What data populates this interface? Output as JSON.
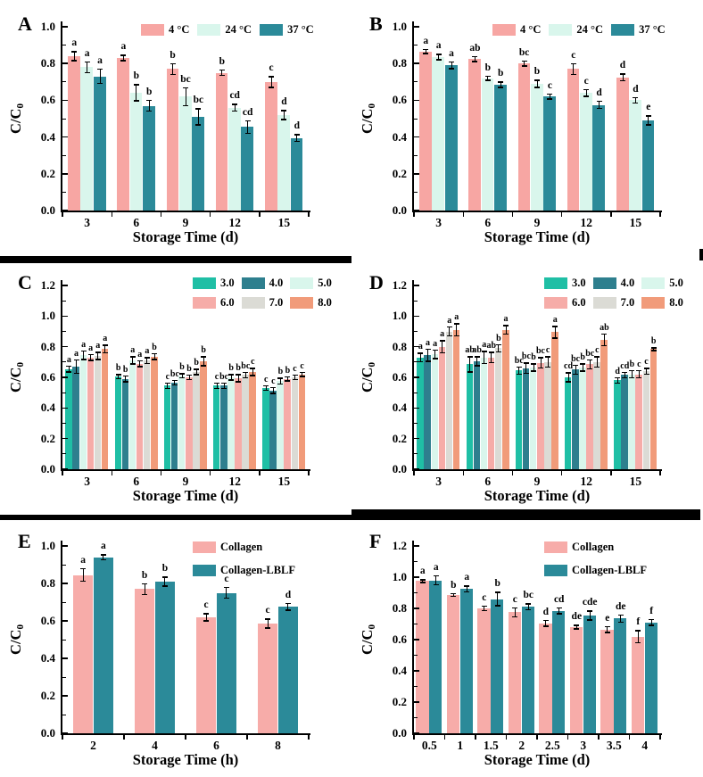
{
  "figure_title": "Six-panel bar chart figure (A-F), C/C0 stability versus storage time",
  "colors": {
    "pink": "#F7A6A3",
    "mint": "#D9F6EC",
    "teal": "#2B8A99",
    "teal_dark": "#2E7F8E",
    "turquoise": "#1FBFA5",
    "salmon": "#F6ACA8",
    "gray": "#DBDBD5",
    "coral": "#F19B7A",
    "axis": "#000000"
  },
  "chart_data": [
    {
      "id": "A",
      "panel_label": "A",
      "type": "bar",
      "xlabel": "Storage Time (d)",
      "ylabel": "C/C",
      "ylabel_sub": "0",
      "ymax": 1.0,
      "yticks": [
        "0.0",
        "0.2",
        "0.4",
        "0.6",
        "0.8",
        "1.0"
      ],
      "categories": [
        "3",
        "6",
        "9",
        "12",
        "15"
      ],
      "legend_position": "top-right-row",
      "grid": "off",
      "series": [
        {
          "name": "4 °C",
          "color": "#F7A6A3",
          "values": [
            0.84,
            0.83,
            0.77,
            0.75,
            0.7
          ],
          "errors": [
            0.025,
            0.015,
            0.03,
            0.015,
            0.03
          ],
          "letters": [
            "a",
            "a",
            "b",
            "b",
            "c"
          ]
        },
        {
          "name": "24 °C",
          "color": "#D9F6EC",
          "values": [
            0.78,
            0.64,
            0.62,
            0.56,
            0.52
          ],
          "errors": [
            0.03,
            0.045,
            0.05,
            0.02,
            0.025
          ],
          "letters": [
            "a",
            "b",
            "bc",
            "cd",
            "d"
          ]
        },
        {
          "name": "37 °C",
          "color": "#2B8A99",
          "values": [
            0.73,
            0.57,
            0.51,
            0.455,
            0.395
          ],
          "errors": [
            0.04,
            0.03,
            0.045,
            0.035,
            0.02
          ],
          "letters": [
            "a",
            "b",
            "bc",
            "cd",
            "d"
          ]
        }
      ]
    },
    {
      "id": "B",
      "panel_label": "B",
      "type": "bar",
      "xlabel": "Storage Time (d)",
      "ylabel": "C/C",
      "ylabel_sub": "0",
      "ymax": 1.0,
      "yticks": [
        "0.0",
        "0.2",
        "0.4",
        "0.6",
        "0.8",
        "1.0"
      ],
      "categories": [
        "3",
        "6",
        "9",
        "12",
        "15"
      ],
      "legend_position": "top-right-row",
      "grid": "off",
      "series": [
        {
          "name": "4 °C",
          "color": "#F7A6A3",
          "values": [
            0.865,
            0.825,
            0.8,
            0.77,
            0.725
          ],
          "errors": [
            0.012,
            0.015,
            0.015,
            0.03,
            0.02
          ],
          "letters": [
            "a",
            "ab",
            "bc",
            "c",
            "d"
          ]
        },
        {
          "name": "24 °C",
          "color": "#D9F6EC",
          "values": [
            0.835,
            0.72,
            0.69,
            0.64,
            0.6
          ],
          "errors": [
            0.015,
            0.012,
            0.02,
            0.02,
            0.015
          ],
          "letters": [
            "a",
            "b",
            "b",
            "c",
            "d"
          ]
        },
        {
          "name": "37 °C",
          "color": "#2B8A99",
          "values": [
            0.79,
            0.685,
            0.62,
            0.575,
            0.49
          ],
          "errors": [
            0.02,
            0.015,
            0.015,
            0.02,
            0.025
          ],
          "letters": [
            "a",
            "b",
            "c",
            "d",
            "e"
          ]
        }
      ]
    },
    {
      "id": "C",
      "panel_label": "C",
      "type": "bar",
      "xlabel": "Storage Time (d)",
      "ylabel": "C/C",
      "ylabel_sub": "0",
      "ymax": 1.2,
      "yticks": [
        "0.0",
        "0.2",
        "0.4",
        "0.6",
        "0.8",
        "1.0",
        "1.2"
      ],
      "categories": [
        "3",
        "6",
        "9",
        "12",
        "15"
      ],
      "legend_position": "top-right-grid",
      "grid": "off",
      "series": [
        {
          "name": "3.0",
          "color": "#1FBFA5",
          "values": [
            0.655,
            0.605,
            0.545,
            0.545,
            0.53
          ],
          "errors": [
            0.02,
            0.015,
            0.02,
            0.02,
            0.015
          ],
          "letters": [
            "a",
            "b",
            "c",
            "c",
            "c"
          ]
        },
        {
          "name": "4.0",
          "color": "#2E7F8E",
          "values": [
            0.67,
            0.59,
            0.565,
            0.545,
            0.515
          ],
          "errors": [
            0.045,
            0.02,
            0.015,
            0.02,
            0.02
          ],
          "letters": [
            "a",
            "b",
            "bc",
            "bc",
            "c"
          ]
        },
        {
          "name": "5.0",
          "color": "#D9F6EC",
          "values": [
            0.745,
            0.71,
            0.61,
            0.6,
            0.575
          ],
          "errors": [
            0.03,
            0.025,
            0.015,
            0.02,
            0.02
          ],
          "letters": [
            "a",
            "a",
            "b",
            "b",
            "b"
          ]
        },
        {
          "name": "6.0",
          "color": "#F6ACA8",
          "values": [
            0.73,
            0.69,
            0.6,
            0.595,
            0.59
          ],
          "errors": [
            0.02,
            0.02,
            0.015,
            0.025,
            0.015
          ],
          "letters": [
            "a",
            "a",
            "b",
            "b",
            "b"
          ]
        },
        {
          "name": "7.0",
          "color": "#DBDBD5",
          "values": [
            0.74,
            0.71,
            0.635,
            0.615,
            0.6
          ],
          "errors": [
            0.025,
            0.02,
            0.02,
            0.02,
            0.015
          ],
          "letters": [
            "a",
            "a",
            "b",
            "bc",
            "c"
          ]
        },
        {
          "name": "8.0",
          "color": "#F19B7A",
          "values": [
            0.785,
            0.735,
            0.705,
            0.635,
            0.62
          ],
          "errors": [
            0.025,
            0.02,
            0.03,
            0.025,
            0.015
          ],
          "letters": [
            "a",
            "b",
            "b",
            "c",
            "c"
          ]
        }
      ]
    },
    {
      "id": "D",
      "panel_label": "D",
      "type": "bar",
      "xlabel": "Storage Time (d)",
      "ylabel": "C/C",
      "ylabel_sub": "0",
      "ymax": 1.2,
      "yticks": [
        "0.0",
        "0.2",
        "0.4",
        "0.6",
        "0.8",
        "1.0",
        "1.2"
      ],
      "categories": [
        "3",
        "6",
        "9",
        "12",
        "15"
      ],
      "legend_position": "top-right-grid",
      "grid": "off",
      "series": [
        {
          "name": "3.0",
          "color": "#1FBFA5",
          "values": [
            0.73,
            0.685,
            0.645,
            0.6,
            0.58
          ],
          "errors": [
            0.03,
            0.05,
            0.025,
            0.03,
            0.02
          ],
          "letters": [
            "a",
            "ab",
            "bc",
            "cd",
            "d"
          ]
        },
        {
          "name": "4.0",
          "color": "#2E7F8E",
          "values": [
            0.745,
            0.705,
            0.66,
            0.65,
            0.615
          ],
          "errors": [
            0.04,
            0.03,
            0.035,
            0.03,
            0.02
          ],
          "letters": [
            "a",
            "ab",
            "bc",
            "bc",
            "cd"
          ]
        },
        {
          "name": "5.0",
          "color": "#D9F6EC",
          "values": [
            0.75,
            0.73,
            0.665,
            0.665,
            0.62
          ],
          "errors": [
            0.03,
            0.04,
            0.025,
            0.025,
            0.025
          ],
          "letters": [
            "a",
            "a",
            "b",
            "b",
            "b"
          ]
        },
        {
          "name": "6.0",
          "color": "#F6ACA8",
          "values": [
            0.8,
            0.73,
            0.695,
            0.685,
            0.62
          ],
          "errors": [
            0.04,
            0.035,
            0.035,
            0.03,
            0.025
          ],
          "letters": [
            "a",
            "ab",
            "bc",
            "bc",
            "c"
          ]
        },
        {
          "name": "7.0",
          "color": "#DBDBD5",
          "values": [
            0.9,
            0.79,
            0.7,
            0.7,
            0.64
          ],
          "errors": [
            0.03,
            0.025,
            0.035,
            0.035,
            0.02
          ],
          "letters": [
            "a",
            "b",
            "c",
            "c",
            "c"
          ]
        },
        {
          "name": "8.0",
          "color": "#F19B7A",
          "values": [
            0.91,
            0.91,
            0.895,
            0.845,
            0.785
          ],
          "errors": [
            0.04,
            0.03,
            0.04,
            0.04,
            0.01
          ],
          "letters": [
            "a",
            "a",
            "a",
            "ab",
            "b"
          ]
        }
      ]
    },
    {
      "id": "E",
      "panel_label": "E",
      "type": "bar",
      "xlabel": "Storage Time (h)",
      "ylabel": "C/C",
      "ylabel_sub": "0",
      "ymax": 1.0,
      "yticks": [
        "0.0",
        "0.2",
        "0.4",
        "0.6",
        "0.8",
        "1.0"
      ],
      "categories": [
        "2",
        "4",
        "6",
        "8"
      ],
      "legend_position": "top-right-column",
      "grid": "off",
      "series": [
        {
          "name": "Collagen",
          "color": "#F7ACA9",
          "values": [
            0.845,
            0.77,
            0.62,
            0.585
          ],
          "errors": [
            0.035,
            0.03,
            0.02,
            0.025
          ],
          "letters": [
            "a",
            "b",
            "c",
            "c"
          ]
        },
        {
          "name": "Collagen-LBLF",
          "color": "#2B8A99",
          "values": [
            0.94,
            0.81,
            0.75,
            0.675
          ],
          "errors": [
            0.015,
            0.025,
            0.03,
            0.02
          ],
          "letters": [
            "a",
            "b",
            "c",
            "d"
          ]
        }
      ]
    },
    {
      "id": "F",
      "panel_label": "F",
      "type": "bar",
      "xlabel": "Storage Time (d)",
      "ylabel": "C/C",
      "ylabel_sub": "0",
      "ymax": 1.2,
      "yticks": [
        "0.0",
        "0.2",
        "0.4",
        "0.6",
        "0.8",
        "1.0",
        "1.2"
      ],
      "categories": [
        "0.5",
        "1",
        "1.5",
        "2",
        "2.5",
        "3",
        "3.5",
        "4"
      ],
      "legend_position": "top-right-column",
      "grid": "off",
      "series": [
        {
          "name": "Collagen",
          "color": "#F7ACA9",
          "values": [
            0.975,
            0.885,
            0.8,
            0.775,
            0.705,
            0.68,
            0.665,
            0.62
          ],
          "errors": [
            0.01,
            0.01,
            0.015,
            0.03,
            0.02,
            0.012,
            0.02,
            0.04
          ],
          "letters": [
            "a",
            "b",
            "c",
            "c",
            "d",
            "de",
            "e",
            "f"
          ]
        },
        {
          "name": "Collagen-LBLF",
          "color": "#2B8A99",
          "values": [
            0.98,
            0.925,
            0.86,
            0.81,
            0.785,
            0.755,
            0.735,
            0.71
          ],
          "errors": [
            0.03,
            0.02,
            0.045,
            0.02,
            0.02,
            0.03,
            0.025,
            0.02
          ],
          "letters": [
            "a",
            "a",
            "b",
            "bc",
            "cd",
            "cde",
            "de",
            "f"
          ]
        }
      ]
    }
  ]
}
